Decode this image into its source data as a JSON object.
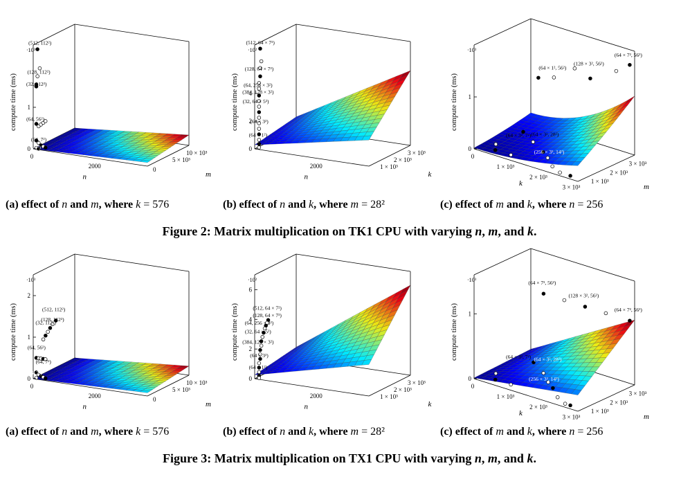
{
  "figures": [
    {
      "caption_prefix": "Figure 2: Matrix multiplication on TK1 CPU with varying",
      "caption_vars": [
        "n",
        "m",
        "k"
      ],
      "caption_sep1": ",",
      "caption_sep2": ", and",
      "caption_end": ".",
      "subcaptions": [
        {
          "label": "(a) effect of",
          "v1": "n",
          "mid": "and",
          "v2": "m",
          "where": ", where",
          "cond_var": "k",
          "cond_val": "= 576"
        },
        {
          "label": "(b) effect of",
          "v1": "n",
          "mid": "and",
          "v2": "k",
          "where": ", where",
          "cond_var": "m",
          "cond_val": "= 28²"
        },
        {
          "label": "(c) effect of",
          "v1": "m",
          "mid": "and",
          "v2": "k",
          "where": ", where",
          "cond_var": "n",
          "cond_val": "= 256"
        }
      ]
    },
    {
      "caption_prefix": "Figure 3: Matrix multiplication on TX1 CPU with varying",
      "caption_vars": [
        "n",
        "m",
        "k"
      ],
      "caption_sep1": ",",
      "caption_sep2": ", and",
      "caption_end": ".",
      "subcaptions": [
        {
          "label": "(a) effect of",
          "v1": "n",
          "mid": "and",
          "v2": "m",
          "where": ", where",
          "cond_var": "k",
          "cond_val": "= 576"
        },
        {
          "label": "(b) effect of",
          "v1": "n",
          "mid": "and",
          "v2": "k",
          "where": ", where",
          "cond_var": "m",
          "cond_val": "= 28²"
        },
        {
          "label": "(c) effect of",
          "v1": "m",
          "mid": "and",
          "v2": "k",
          "where": ", where",
          "cond_var": "n",
          "cond_val": "= 256"
        }
      ]
    }
  ],
  "chart_data": [
    {
      "type": "surface3d",
      "figure": "Figure 2",
      "panel": "a",
      "zlabel": "compute time (ms)",
      "zscale": "·10³",
      "xlabel": "n",
      "ylabel": "m",
      "z_ticks": [
        "0",
        "1"
      ],
      "x_ticks": [
        "0",
        "2000"
      ],
      "y_ticks": [
        "0",
        "5 × 10³",
        "10 × 10³"
      ],
      "annotations": [
        "(512, 112²)",
        "(128, 112²)",
        "(32, 112²)",
        "(64, 56²)",
        "(64, 7²)",
        "(96, 7²)"
      ]
    },
    {
      "type": "surface3d",
      "figure": "Figure 2",
      "panel": "b",
      "zlabel": "compute time (ms)",
      "zscale": "·10²",
      "xlabel": "n",
      "ylabel": "k",
      "z_ticks": [
        "0",
        "2",
        "4"
      ],
      "x_ticks": [
        "2000"
      ],
      "y_ticks": [
        "1 × 10³",
        "2 × 10³",
        "3 × 10³"
      ],
      "annotations": [
        "(512, 64 × 7²)",
        "(128, 64 × 7²)",
        "(64, 256 × 3²)",
        "(384, 128 × 3²)",
        "(32, 64 × 5²)",
        "(64 × 1²)",
        "(64 × 3²)"
      ]
    },
    {
      "type": "surface3d",
      "figure": "Figure 2",
      "panel": "c",
      "zlabel": "compute time (ms)",
      "zscale": "·10³",
      "xlabel": "k",
      "ylabel": "m",
      "z_ticks": [
        "0",
        "1"
      ],
      "x_ticks": [
        "0",
        "1 × 10³",
        "2 × 10³",
        "3 × 10³"
      ],
      "y_ticks": [
        "1 × 10³",
        "2 × 10³",
        "3 × 10³"
      ],
      "annotations": [
        "(64 × 7², 56²)",
        "(128 × 3², 56²)",
        "(64 × 1², 56²)",
        "(64 × 3², 28²)",
        "(64 × 3², 7²)",
        "(256 × 3², 14²)"
      ]
    },
    {
      "type": "surface3d",
      "figure": "Figure 3",
      "panel": "a",
      "zlabel": "compute time (ms)",
      "zscale": "·10³",
      "xlabel": "n",
      "ylabel": "m",
      "z_ticks": [
        "0",
        "1",
        "2"
      ],
      "x_ticks": [
        "0",
        "2000"
      ],
      "y_ticks": [
        "0",
        "5 × 10³",
        "10 × 10³"
      ],
      "annotations": [
        "(512, 112²)",
        "(128, 112²)",
        "(32, 112²)",
        "(64, 56²)",
        "(64, 7²)",
        "(96, 7²)"
      ]
    },
    {
      "type": "surface3d",
      "figure": "Figure 3",
      "panel": "b",
      "zlabel": "compute time (ms)",
      "zscale": "·10²",
      "xlabel": "n",
      "ylabel": "k",
      "z_ticks": [
        "0",
        "2",
        "4",
        "6"
      ],
      "x_ticks": [
        "2000"
      ],
      "y_ticks": [
        "1 × 10³",
        "2 × 10³",
        "3 × 10³"
      ],
      "annotations": [
        "(512, 64 × 7²)",
        "(128, 64 × 7²)",
        "(64, 256 × 3²)",
        "(32, 64 × 5²)",
        "(384, 128 × 3²)",
        "(64 × 3²)",
        "(64 × 1²)"
      ]
    },
    {
      "type": "surface3d",
      "figure": "Figure 3",
      "panel": "c",
      "zlabel": "compute time (ms)",
      "zscale": "·10³",
      "xlabel": "k",
      "ylabel": "m",
      "z_ticks": [
        "0",
        "1"
      ],
      "x_ticks": [
        "0",
        "1 × 10³",
        "2 × 10³",
        "3 × 10³"
      ],
      "y_ticks": [
        "1 × 10³",
        "2 × 10³",
        "3 × 10³"
      ],
      "annotations": [
        "(64 × 7², 56²)",
        "(128 × 3², 56²)",
        "(64 × 7², 56²)",
        "(64 × 3², 7²)",
        "(64 × 3², 28²)",
        "(256 × 3², 14²)"
      ]
    }
  ]
}
